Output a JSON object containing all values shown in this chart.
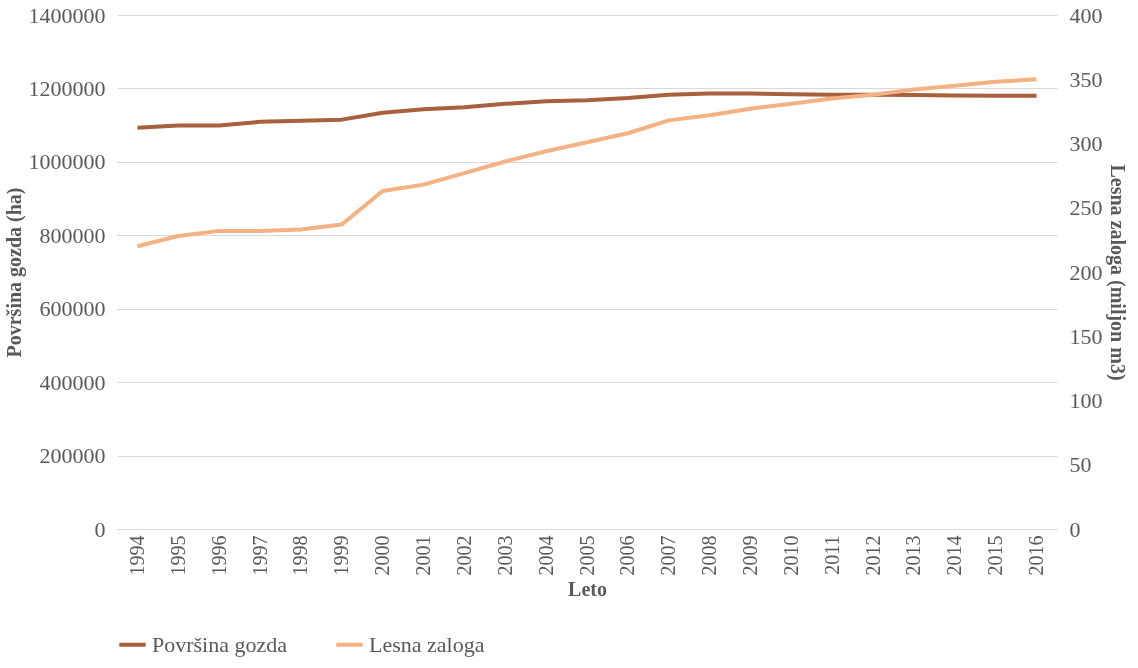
{
  "chart_data": {
    "type": "line",
    "xlabel": "Leto",
    "ylabel": "Površina gozda (ha)",
    "y2label": "Lesna zaloga (miljon m3)",
    "categories": [
      "1994",
      "1995",
      "1996",
      "1997",
      "1998",
      "1999",
      "2000",
      "2001",
      "2002",
      "2003",
      "2004",
      "2005",
      "2006",
      "2007",
      "2008",
      "2009",
      "2010",
      "2011",
      "2012",
      "2013",
      "2014",
      "2015",
      "2016"
    ],
    "series": [
      {
        "name": "Površina gozda",
        "color": "#a9603e",
        "values": [
          1093000,
          1099000,
          1099000,
          1109000,
          1112000,
          1115000,
          1134000,
          1143000,
          1149000,
          1158000,
          1165000,
          1168000,
          1174000,
          1183000,
          1186000,
          1186000,
          1184000,
          1183000,
          1183000,
          1182000,
          1181000,
          1180000,
          1180000
        ]
      },
      {
        "name": "Lesna zaloga",
        "color": "#f4b183",
        "axis": "y2",
        "values": [
          220,
          228,
          232,
          232,
          233,
          237,
          263,
          268,
          277,
          286,
          294,
          301,
          308,
          318,
          322,
          327,
          331,
          335,
          338,
          342,
          345,
          348,
          350
        ]
      }
    ],
    "ylim": [
      0,
      1400000
    ],
    "yticks": [
      0,
      200000,
      400000,
      600000,
      800000,
      1000000,
      1200000,
      1400000
    ],
    "y2lim": [
      0,
      400
    ],
    "y2ticks": [
      0,
      50,
      100,
      150,
      200,
      250,
      300,
      350,
      400
    ],
    "grid": "y",
    "legend": "bottom",
    "marker": "none",
    "line_style": "solid"
  }
}
